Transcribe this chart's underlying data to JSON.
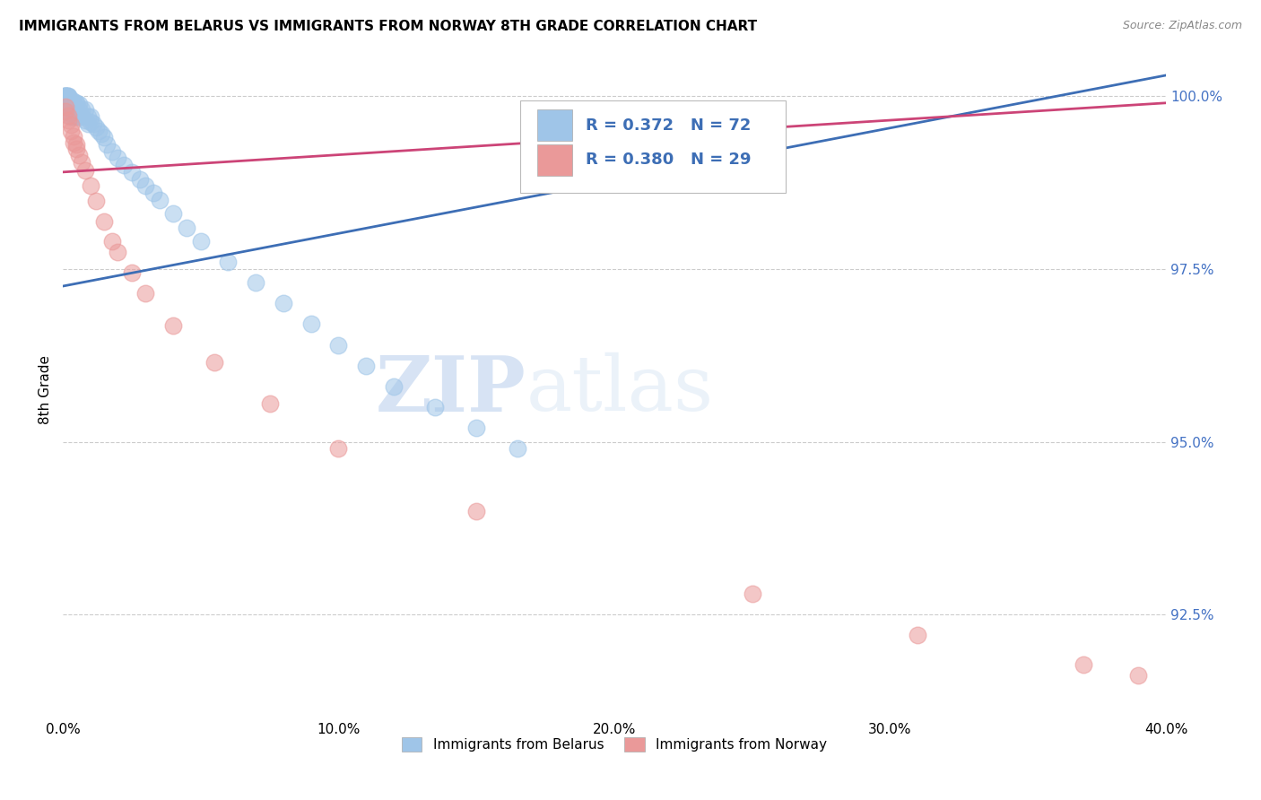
{
  "title": "IMMIGRANTS FROM BELARUS VS IMMIGRANTS FROM NORWAY 8TH GRADE CORRELATION CHART",
  "source": "Source: ZipAtlas.com",
  "ylabel_label": "8th Grade",
  "xlim": [
    0.0,
    0.4
  ],
  "ylim": [
    0.91,
    1.005
  ],
  "ytick_vals": [
    0.925,
    0.95,
    0.975,
    1.0
  ],
  "ytick_labels": [
    "92.5%",
    "95.0%",
    "97.5%",
    "100.0%"
  ],
  "xtick_vals": [
    0.0,
    0.1,
    0.2,
    0.3,
    0.4
  ],
  "xtick_labels": [
    "0.0%",
    "10.0%",
    "20.0%",
    "30.0%",
    "40.0%"
  ],
  "belarus_color": "#9fc5e8",
  "norway_color": "#ea9999",
  "belarus_line_color": "#3d6eb5",
  "norway_line_color": "#cc4477",
  "legend_r_belarus": "0.372",
  "legend_n_belarus": "72",
  "legend_r_norway": "0.380",
  "legend_n_norway": "29",
  "watermark_zip": "ZIP",
  "watermark_atlas": "atlas",
  "belarus_x": [
    0.0005,
    0.001,
    0.001,
    0.001,
    0.001,
    0.001,
    0.0015,
    0.002,
    0.002,
    0.002,
    0.002,
    0.002,
    0.002,
    0.003,
    0.003,
    0.003,
    0.003,
    0.003,
    0.004,
    0.004,
    0.004,
    0.005,
    0.005,
    0.005,
    0.006,
    0.006,
    0.007,
    0.007,
    0.008,
    0.008,
    0.009,
    0.009,
    0.01,
    0.01,
    0.011,
    0.012,
    0.013,
    0.014,
    0.015,
    0.016,
    0.018,
    0.02,
    0.022,
    0.025,
    0.028,
    0.03,
    0.033,
    0.035,
    0.04,
    0.045,
    0.05,
    0.06,
    0.07,
    0.08,
    0.09,
    0.1,
    0.11,
    0.12,
    0.135,
    0.15,
    0.165,
    0.001,
    0.001,
    0.002,
    0.002,
    0.003,
    0.003,
    0.004,
    0.004,
    0.005,
    0.005,
    0.006
  ],
  "belarus_y": [
    1.0,
    1.0,
    1.0,
    1.0,
    1.0,
    0.9995,
    1.0,
    1.0,
    1.0,
    0.9995,
    0.999,
    0.9985,
    0.998,
    0.999,
    0.9985,
    0.998,
    0.9975,
    0.997,
    0.999,
    0.998,
    0.997,
    0.999,
    0.998,
    0.997,
    0.998,
    0.997,
    0.998,
    0.997,
    0.998,
    0.9965,
    0.997,
    0.996,
    0.997,
    0.9962,
    0.996,
    0.9955,
    0.995,
    0.9945,
    0.994,
    0.993,
    0.992,
    0.991,
    0.99,
    0.989,
    0.988,
    0.987,
    0.986,
    0.985,
    0.983,
    0.981,
    0.979,
    0.976,
    0.973,
    0.97,
    0.967,
    0.964,
    0.961,
    0.958,
    0.955,
    0.952,
    0.949,
    0.9998,
    0.9992,
    0.9998,
    0.999,
    0.9995,
    0.9988,
    0.9992,
    0.9985,
    0.999,
    0.9982,
    0.9988
  ],
  "norway_x": [
    0.001,
    0.001,
    0.002,
    0.002,
    0.003,
    0.003,
    0.004,
    0.004,
    0.005,
    0.006,
    0.007,
    0.008,
    0.01,
    0.012,
    0.015,
    0.018,
    0.02,
    0.025,
    0.03,
    0.04,
    0.055,
    0.075,
    0.1,
    0.15,
    0.25,
    0.31,
    0.37,
    0.39,
    0.005
  ],
  "norway_y": [
    0.9985,
    0.9978,
    0.9972,
    0.9965,
    0.9958,
    0.995,
    0.9942,
    0.9933,
    0.9924,
    0.9914,
    0.9904,
    0.9893,
    0.987,
    0.9848,
    0.9818,
    0.979,
    0.9775,
    0.9745,
    0.9715,
    0.9668,
    0.9615,
    0.9555,
    0.949,
    0.94,
    0.928,
    0.922,
    0.9178,
    0.9162,
    0.993
  ],
  "belarus_line_x": [
    0.0,
    0.4
  ],
  "belarus_line_y": [
    0.9725,
    1.003
  ],
  "norway_line_x": [
    0.0,
    0.4
  ],
  "norway_line_y": [
    0.989,
    0.999
  ]
}
